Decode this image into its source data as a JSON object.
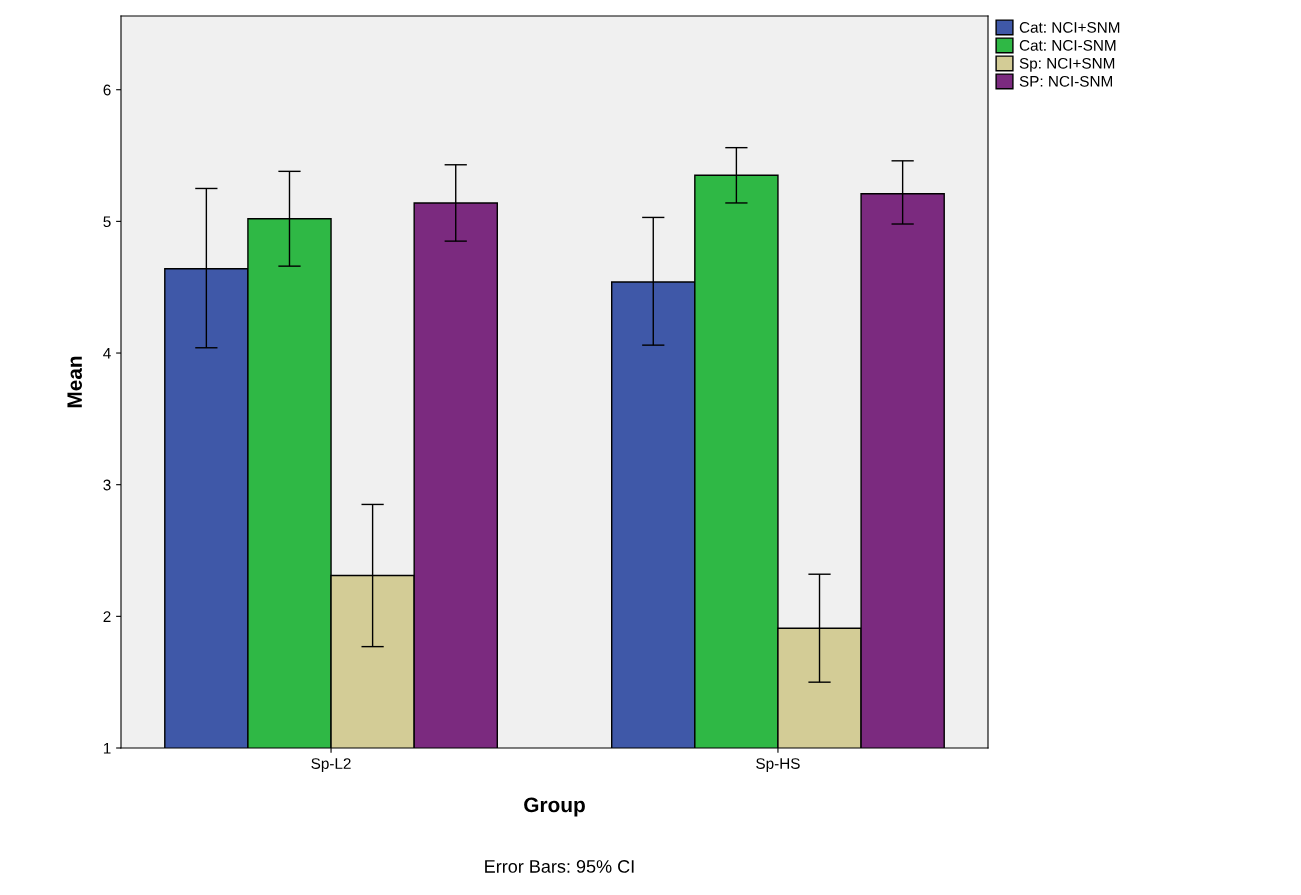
{
  "chart_data": {
    "type": "bar",
    "xlabel": "Group",
    "ylabel": "Mean",
    "categories": [
      "Sp-L2",
      "Sp-HS"
    ],
    "series": [
      {
        "name": "Cat: NCI+SNM",
        "color": "#3f58a8",
        "values": [
          4.64,
          4.54
        ],
        "errors": [
          [
            4.04,
            5.25
          ],
          [
            4.06,
            5.03
          ]
        ]
      },
      {
        "name": "Cat: NCI-SNM",
        "color": "#2fb845",
        "values": [
          5.02,
          5.35
        ],
        "errors": [
          [
            4.66,
            5.38
          ],
          [
            5.14,
            5.56
          ]
        ]
      },
      {
        "name": "Sp: NCI+SNM",
        "color": "#d3cc96",
        "values": [
          2.31,
          1.91
        ],
        "errors": [
          [
            1.77,
            2.85
          ],
          [
            1.5,
            2.32
          ]
        ]
      },
      {
        "name": "SP: NCI-SNM",
        "color": "#7b2a7f",
        "values": [
          5.14,
          5.21
        ],
        "errors": [
          [
            4.85,
            5.43
          ],
          [
            4.98,
            5.46
          ]
        ]
      }
    ],
    "ylim": [
      1,
      6.56
    ],
    "yticks": [
      1,
      2,
      3,
      4,
      5,
      6
    ],
    "grid": false,
    "legend": "top right",
    "annotations": [
      "Error Bars: 95% CI"
    ]
  }
}
